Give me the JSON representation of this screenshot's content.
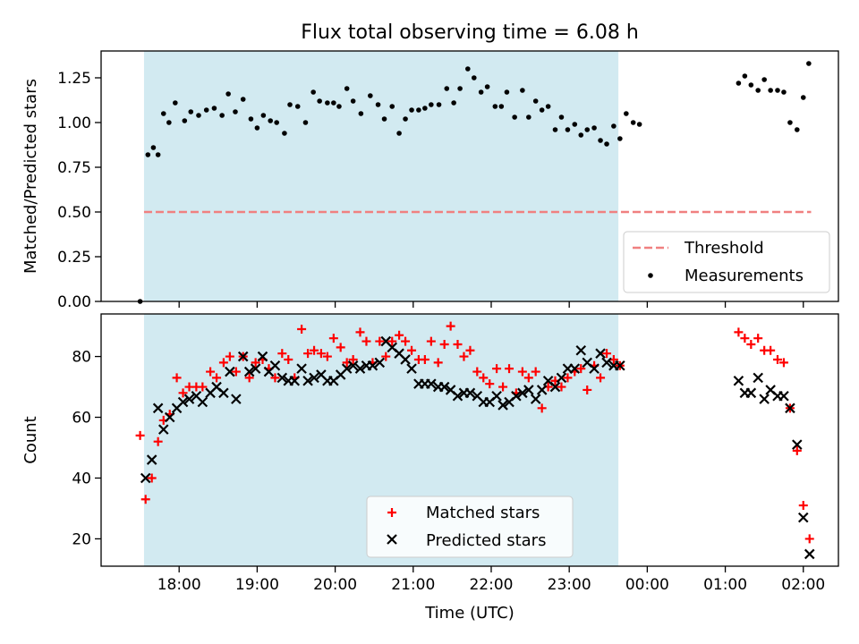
{
  "figure": {
    "title": "Flux total observing time = 6.08 h"
  },
  "colors": {
    "shade": "#add8e6",
    "threshold": "#f08080",
    "measurement": "#000000",
    "matched": "#ff0000",
    "predicted": "#000000"
  },
  "chart_data": [
    {
      "type": "scatter",
      "title": "Flux total observing time = 6.08 h",
      "xlabel": "",
      "ylabel": "Matched/Predicted stars",
      "x_axis_type": "time (hours, 24+ = next day)",
      "xlim": [
        17.0,
        26.45
      ],
      "ylim": [
        0.0,
        1.4
      ],
      "yticks": [
        "0.00",
        "0.25",
        "0.50",
        "0.75",
        "1.00",
        "1.25"
      ],
      "shaded_span": [
        17.55,
        23.63
      ],
      "grid": false,
      "legend_position": "lower right",
      "threshold": {
        "name": "Threshold",
        "y": 0.5,
        "x_range": [
          17.55,
          26.1
        ]
      },
      "series": [
        {
          "name": "Measurements",
          "points": [
            [
              17.5,
              0.0
            ],
            [
              17.6,
              0.82
            ],
            [
              17.67,
              0.86
            ],
            [
              17.73,
              0.82
            ],
            [
              17.8,
              1.05
            ],
            [
              17.87,
              1.0
            ],
            [
              17.95,
              1.11
            ],
            [
              18.07,
              1.01
            ],
            [
              18.15,
              1.06
            ],
            [
              18.25,
              1.04
            ],
            [
              18.35,
              1.07
            ],
            [
              18.45,
              1.08
            ],
            [
              18.55,
              1.04
            ],
            [
              18.63,
              1.16
            ],
            [
              18.72,
              1.06
            ],
            [
              18.82,
              1.13
            ],
            [
              18.92,
              1.02
            ],
            [
              19.0,
              0.97
            ],
            [
              19.08,
              1.04
            ],
            [
              19.17,
              1.01
            ],
            [
              19.25,
              1.0
            ],
            [
              19.35,
              0.94
            ],
            [
              19.42,
              1.1
            ],
            [
              19.52,
              1.09
            ],
            [
              19.62,
              1.0
            ],
            [
              19.72,
              1.17
            ],
            [
              19.8,
              1.12
            ],
            [
              19.9,
              1.11
            ],
            [
              19.98,
              1.11
            ],
            [
              20.05,
              1.09
            ],
            [
              20.15,
              1.19
            ],
            [
              20.23,
              1.12
            ],
            [
              20.33,
              1.05
            ],
            [
              20.45,
              1.15
            ],
            [
              20.55,
              1.1
            ],
            [
              20.63,
              1.02
            ],
            [
              20.73,
              1.09
            ],
            [
              20.82,
              0.94
            ],
            [
              20.9,
              1.02
            ],
            [
              20.98,
              1.07
            ],
            [
              21.07,
              1.07
            ],
            [
              21.15,
              1.08
            ],
            [
              21.23,
              1.1
            ],
            [
              21.33,
              1.1
            ],
            [
              21.43,
              1.19
            ],
            [
              21.52,
              1.11
            ],
            [
              21.6,
              1.19
            ],
            [
              21.7,
              1.3
            ],
            [
              21.78,
              1.25
            ],
            [
              21.87,
              1.17
            ],
            [
              21.95,
              1.2
            ],
            [
              22.05,
              1.09
            ],
            [
              22.13,
              1.09
            ],
            [
              22.2,
              1.17
            ],
            [
              22.3,
              1.03
            ],
            [
              22.4,
              1.18
            ],
            [
              22.48,
              1.03
            ],
            [
              22.57,
              1.12
            ],
            [
              22.65,
              1.07
            ],
            [
              22.73,
              1.09
            ],
            [
              22.82,
              0.96
            ],
            [
              22.9,
              1.03
            ],
            [
              22.98,
              0.96
            ],
            [
              23.07,
              0.99
            ],
            [
              23.15,
              0.93
            ],
            [
              23.23,
              0.96
            ],
            [
              23.32,
              0.97
            ],
            [
              23.4,
              0.9
            ],
            [
              23.48,
              0.88
            ],
            [
              23.57,
              0.98
            ],
            [
              23.65,
              0.91
            ],
            [
              23.73,
              1.05
            ],
            [
              23.82,
              1.0
            ],
            [
              23.9,
              0.99
            ],
            [
              25.17,
              1.22
            ],
            [
              25.25,
              1.26
            ],
            [
              25.33,
              1.21
            ],
            [
              25.42,
              1.18
            ],
            [
              25.5,
              1.24
            ],
            [
              25.58,
              1.18
            ],
            [
              25.67,
              1.18
            ],
            [
              25.75,
              1.17
            ],
            [
              25.83,
              1.0
            ],
            [
              25.92,
              0.96
            ],
            [
              26.0,
              1.14
            ],
            [
              26.07,
              1.33
            ]
          ]
        }
      ]
    },
    {
      "type": "scatter",
      "title": "",
      "xlabel": "Time (UTC)",
      "ylabel": "Count",
      "x_axis_type": "time (hours, 24+ = next day)",
      "xlim": [
        17.0,
        26.45
      ],
      "ylim": [
        11.0,
        94.0
      ],
      "yticks": [
        "20",
        "40",
        "60",
        "80"
      ],
      "xticks": [
        "18:00",
        "19:00",
        "20:00",
        "21:00",
        "22:00",
        "23:00",
        "00:00",
        "01:00",
        "02:00"
      ],
      "shaded_span": [
        17.55,
        23.63
      ],
      "grid": false,
      "legend_position": "lower center",
      "series": [
        {
          "name": "Matched stars",
          "marker": "plus",
          "points": [
            [
              17.5,
              54
            ],
            [
              17.57,
              33
            ],
            [
              17.65,
              40
            ],
            [
              17.73,
              52
            ],
            [
              17.8,
              59
            ],
            [
              17.88,
              61
            ],
            [
              17.97,
              73
            ],
            [
              18.05,
              68
            ],
            [
              18.13,
              70
            ],
            [
              18.22,
              70
            ],
            [
              18.3,
              70
            ],
            [
              18.4,
              75
            ],
            [
              18.48,
              73
            ],
            [
              18.57,
              78
            ],
            [
              18.65,
              80
            ],
            [
              18.73,
              75
            ],
            [
              18.82,
              80
            ],
            [
              18.9,
              73
            ],
            [
              18.98,
              78
            ],
            [
              19.07,
              79
            ],
            [
              19.15,
              76
            ],
            [
              19.23,
              73
            ],
            [
              19.32,
              81
            ],
            [
              19.4,
              79
            ],
            [
              19.48,
              73
            ],
            [
              19.57,
              89
            ],
            [
              19.65,
              81
            ],
            [
              19.73,
              82
            ],
            [
              19.82,
              81
            ],
            [
              19.9,
              80
            ],
            [
              19.98,
              86
            ],
            [
              20.07,
              83
            ],
            [
              20.15,
              78
            ],
            [
              20.23,
              79
            ],
            [
              20.32,
              88
            ],
            [
              20.4,
              85
            ],
            [
              20.48,
              78
            ],
            [
              20.57,
              85
            ],
            [
              20.65,
              80
            ],
            [
              20.73,
              85
            ],
            [
              20.82,
              87
            ],
            [
              20.9,
              85
            ],
            [
              20.98,
              82
            ],
            [
              21.07,
              79
            ],
            [
              21.15,
              79
            ],
            [
              21.23,
              85
            ],
            [
              21.32,
              78
            ],
            [
              21.4,
              84
            ],
            [
              21.48,
              90
            ],
            [
              21.57,
              84
            ],
            [
              21.65,
              80
            ],
            [
              21.73,
              82
            ],
            [
              21.82,
              75
            ],
            [
              21.9,
              73
            ],
            [
              21.98,
              71
            ],
            [
              22.07,
              76
            ],
            [
              22.15,
              70
            ],
            [
              22.23,
              76
            ],
            [
              22.32,
              68
            ],
            [
              22.4,
              75
            ],
            [
              22.48,
              73
            ],
            [
              22.57,
              75
            ],
            [
              22.65,
              63
            ],
            [
              22.73,
              70
            ],
            [
              22.82,
              72
            ],
            [
              22.9,
              70
            ],
            [
              22.98,
              73
            ],
            [
              23.07,
              75
            ],
            [
              23.15,
              76
            ],
            [
              23.23,
              69
            ],
            [
              23.32,
              77
            ],
            [
              23.4,
              73
            ],
            [
              23.48,
              81
            ],
            [
              23.57,
              79
            ],
            [
              23.65,
              77
            ],
            [
              25.17,
              88
            ],
            [
              25.25,
              86
            ],
            [
              25.33,
              84
            ],
            [
              25.42,
              86
            ],
            [
              25.5,
              82
            ],
            [
              25.58,
              82
            ],
            [
              25.67,
              79
            ],
            [
              25.75,
              78
            ],
            [
              25.83,
              63
            ],
            [
              25.92,
              49
            ],
            [
              26.0,
              31
            ],
            [
              26.08,
              20
            ]
          ]
        },
        {
          "name": "Predicted stars",
          "marker": "x",
          "points": [
            [
              17.57,
              40
            ],
            [
              17.65,
              46
            ],
            [
              17.73,
              63
            ],
            [
              17.8,
              56
            ],
            [
              17.88,
              60
            ],
            [
              17.97,
              63
            ],
            [
              18.05,
              65
            ],
            [
              18.13,
              66
            ],
            [
              18.22,
              67
            ],
            [
              18.3,
              65
            ],
            [
              18.4,
              68
            ],
            [
              18.48,
              70
            ],
            [
              18.57,
              68
            ],
            [
              18.65,
              75
            ],
            [
              18.73,
              66
            ],
            [
              18.82,
              80
            ],
            [
              18.9,
              75
            ],
            [
              18.98,
              76
            ],
            [
              19.07,
              80
            ],
            [
              19.15,
              75
            ],
            [
              19.23,
              77
            ],
            [
              19.32,
              73
            ],
            [
              19.4,
              72
            ],
            [
              19.48,
              72
            ],
            [
              19.57,
              76
            ],
            [
              19.65,
              72
            ],
            [
              19.73,
              73
            ],
            [
              19.82,
              74
            ],
            [
              19.9,
              72
            ],
            [
              19.98,
              72
            ],
            [
              20.07,
              74
            ],
            [
              20.15,
              76
            ],
            [
              20.23,
              77
            ],
            [
              20.32,
              76
            ],
            [
              20.4,
              77
            ],
            [
              20.48,
              77
            ],
            [
              20.57,
              78
            ],
            [
              20.65,
              85
            ],
            [
              20.73,
              83
            ],
            [
              20.82,
              81
            ],
            [
              20.9,
              79
            ],
            [
              20.98,
              76
            ],
            [
              21.07,
              71
            ],
            [
              21.15,
              71
            ],
            [
              21.23,
              71
            ],
            [
              21.32,
              70
            ],
            [
              21.4,
              70
            ],
            [
              21.48,
              69
            ],
            [
              21.57,
              67
            ],
            [
              21.65,
              68
            ],
            [
              21.73,
              68
            ],
            [
              21.82,
              67
            ],
            [
              21.9,
              65
            ],
            [
              21.98,
              65
            ],
            [
              22.07,
              67
            ],
            [
              22.15,
              64
            ],
            [
              22.23,
              65
            ],
            [
              22.32,
              67
            ],
            [
              22.4,
              68
            ],
            [
              22.48,
              69
            ],
            [
              22.57,
              66
            ],
            [
              22.65,
              69
            ],
            [
              22.73,
              72
            ],
            [
              22.82,
              70
            ],
            [
              22.9,
              73
            ],
            [
              22.98,
              76
            ],
            [
              23.07,
              76
            ],
            [
              23.15,
              82
            ],
            [
              23.23,
              78
            ],
            [
              23.32,
              76
            ],
            [
              23.4,
              81
            ],
            [
              23.48,
              78
            ],
            [
              23.57,
              77
            ],
            [
              23.65,
              77
            ],
            [
              25.17,
              72
            ],
            [
              25.25,
              68
            ],
            [
              25.33,
              68
            ],
            [
              25.42,
              73
            ],
            [
              25.5,
              66
            ],
            [
              25.58,
              69
            ],
            [
              25.67,
              67
            ],
            [
              25.75,
              67
            ],
            [
              25.83,
              63
            ],
            [
              25.92,
              51
            ],
            [
              26.0,
              27
            ],
            [
              26.08,
              15
            ]
          ]
        }
      ]
    }
  ]
}
